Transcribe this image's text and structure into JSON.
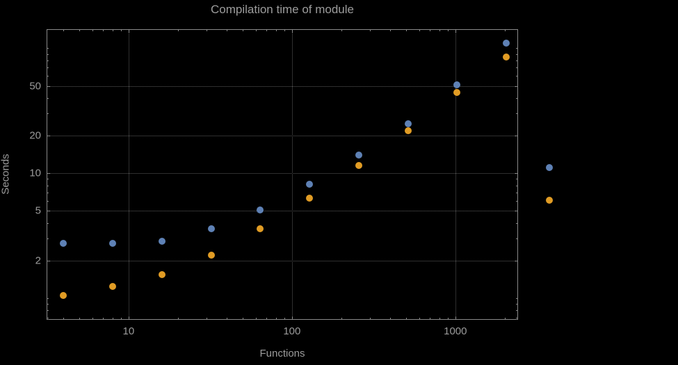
{
  "title": "Compilation time of module",
  "axes": {
    "x_label": "Functions",
    "y_label": "Seconds"
  },
  "chart_data": {
    "type": "scatter",
    "title": "Compilation time of module",
    "xlabel": "Functions",
    "ylabel": "Seconds",
    "x_scale": "log",
    "y_scale": "log",
    "grid": "dotted",
    "x_ticks": [
      10,
      100,
      1000
    ],
    "y_ticks": [
      2,
      5,
      10,
      20,
      50
    ],
    "x_range": [
      3.15,
      2420
    ],
    "y_range": [
      0.672,
      142
    ],
    "x": [
      4,
      8,
      16,
      32,
      64,
      128,
      256,
      512,
      1024,
      2048
    ],
    "series": [
      {
        "name": "series-1",
        "color": "#5E81B5",
        "values": [
          2.75,
          2.75,
          2.85,
          3.6,
          5.1,
          8.2,
          14,
          25,
          51,
          110
        ]
      },
      {
        "name": "series-2",
        "color": "#E19C24",
        "values": [
          1.05,
          1.25,
          1.55,
          2.2,
          3.6,
          6.3,
          11.5,
          22,
          44,
          85
        ]
      }
    ],
    "legend": {
      "visible_labels": false,
      "marker_colors": [
        "#5E81B5",
        "#E19C24"
      ]
    }
  },
  "colors": {
    "background": "#000000",
    "text": "#9b9b9b",
    "grid": "#5c5c5c",
    "frame": "#8a8a8a",
    "series1": "#5E81B5",
    "series2": "#E19C24"
  }
}
